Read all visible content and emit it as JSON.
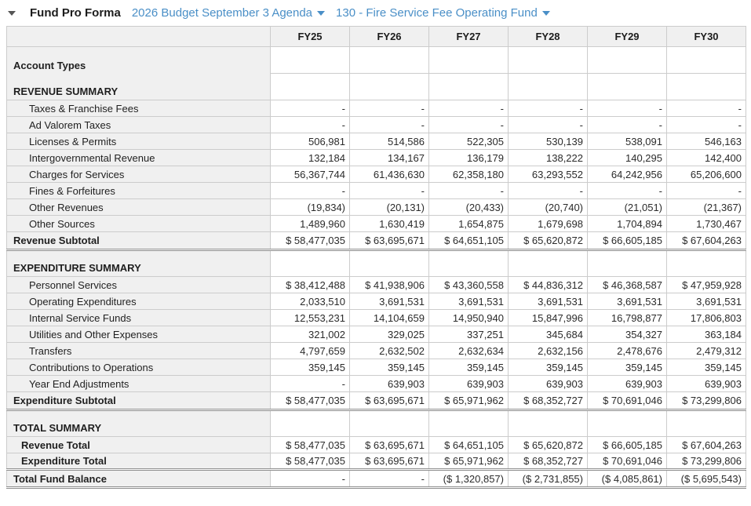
{
  "header": {
    "title": "Fund Pro Forma",
    "budget_selector": "2026 Budget September 3 Agenda",
    "fund_selector": "130 - Fire Service Fee Operating Fund",
    "link_color": "#4a8fc7"
  },
  "table": {
    "columns": [
      "FY25",
      "FY26",
      "FY27",
      "FY28",
      "FY29",
      "FY30"
    ],
    "rows": [
      {
        "type": "group",
        "label": "Account Types",
        "values": [
          "",
          "",
          "",
          "",
          "",
          ""
        ]
      },
      {
        "type": "group",
        "label": "REVENUE SUMMARY",
        "values": [
          "",
          "",
          "",
          "",
          "",
          ""
        ]
      },
      {
        "type": "data",
        "label": "Taxes & Franchise Fees",
        "values": [
          "-",
          "-",
          "-",
          "-",
          "-",
          "-"
        ]
      },
      {
        "type": "data",
        "label": "Ad Valorem Taxes",
        "values": [
          "-",
          "-",
          "-",
          "-",
          "-",
          "-"
        ]
      },
      {
        "type": "data",
        "label": "Licenses & Permits",
        "values": [
          "506,981",
          "514,586",
          "522,305",
          "530,139",
          "538,091",
          "546,163"
        ]
      },
      {
        "type": "data",
        "label": "Intergovernmental Revenue",
        "values": [
          "132,184",
          "134,167",
          "136,179",
          "138,222",
          "140,295",
          "142,400"
        ]
      },
      {
        "type": "data",
        "label": "Charges for Services",
        "values": [
          "56,367,744",
          "61,436,630",
          "62,358,180",
          "63,293,552",
          "64,242,956",
          "65,206,600"
        ]
      },
      {
        "type": "data",
        "label": "Fines & Forfeitures",
        "values": [
          "-",
          "-",
          "-",
          "-",
          "-",
          "-"
        ]
      },
      {
        "type": "data",
        "label": "Other Revenues",
        "values": [
          "(19,834)",
          "(20,131)",
          "(20,433)",
          "(20,740)",
          "(21,051)",
          "(21,367)"
        ]
      },
      {
        "type": "data",
        "label": "Other Sources",
        "values": [
          "1,489,960",
          "1,630,419",
          "1,654,875",
          "1,679,698",
          "1,704,894",
          "1,730,467"
        ]
      },
      {
        "type": "subtotal",
        "label": "Revenue Subtotal",
        "values": [
          "$ 58,477,035",
          "$ 63,695,671",
          "$ 64,651,105",
          "$ 65,620,872",
          "$ 66,605,185",
          "$ 67,604,263"
        ]
      },
      {
        "type": "group",
        "label": "EXPENDITURE SUMMARY",
        "values": [
          "",
          "",
          "",
          "",
          "",
          ""
        ]
      },
      {
        "type": "data",
        "label": "Personnel Services",
        "values": [
          "$ 38,412,488",
          "$ 41,938,906",
          "$ 43,360,558",
          "$ 44,836,312",
          "$ 46,368,587",
          "$ 47,959,928"
        ]
      },
      {
        "type": "data",
        "label": "Operating Expenditures",
        "values": [
          "2,033,510",
          "3,691,531",
          "3,691,531",
          "3,691,531",
          "3,691,531",
          "3,691,531"
        ]
      },
      {
        "type": "data",
        "label": "Internal Service Funds",
        "values": [
          "12,553,231",
          "14,104,659",
          "14,950,940",
          "15,847,996",
          "16,798,877",
          "17,806,803"
        ]
      },
      {
        "type": "data",
        "label": "Utilities and Other Expenses",
        "values": [
          "321,002",
          "329,025",
          "337,251",
          "345,684",
          "354,327",
          "363,184"
        ]
      },
      {
        "type": "data",
        "label": "Transfers",
        "values": [
          "4,797,659",
          "2,632,502",
          "2,632,634",
          "2,632,156",
          "2,478,676",
          "2,479,312"
        ]
      },
      {
        "type": "data",
        "label": "Contributions to Operations",
        "values": [
          "359,145",
          "359,145",
          "359,145",
          "359,145",
          "359,145",
          "359,145"
        ]
      },
      {
        "type": "data",
        "label": "Year End Adjustments",
        "values": [
          "-",
          "639,903",
          "639,903",
          "639,903",
          "639,903",
          "639,903"
        ]
      },
      {
        "type": "subtotal",
        "label": "Expenditure Subtotal",
        "values": [
          "$ 58,477,035",
          "$ 63,695,671",
          "$ 65,971,962",
          "$ 68,352,727",
          "$ 70,691,046",
          "$ 73,299,806"
        ]
      },
      {
        "type": "group",
        "label": "TOTAL SUMMARY",
        "values": [
          "",
          "",
          "",
          "",
          "",
          ""
        ]
      },
      {
        "type": "total",
        "label": "Revenue Total",
        "values": [
          "$ 58,477,035",
          "$ 63,695,671",
          "$ 64,651,105",
          "$ 65,620,872",
          "$ 66,605,185",
          "$ 67,604,263"
        ]
      },
      {
        "type": "totalend",
        "label": "Expenditure Total",
        "values": [
          "$ 58,477,035",
          "$ 63,695,671",
          "$ 65,971,962",
          "$ 68,352,727",
          "$ 70,691,046",
          "$ 73,299,806"
        ]
      },
      {
        "type": "grand",
        "label": "Total Fund Balance",
        "values": [
          "-",
          "-",
          "($ 1,320,857)",
          "($ 2,731,855)",
          "($ 4,085,861)",
          "($ 5,695,543)"
        ]
      }
    ]
  }
}
